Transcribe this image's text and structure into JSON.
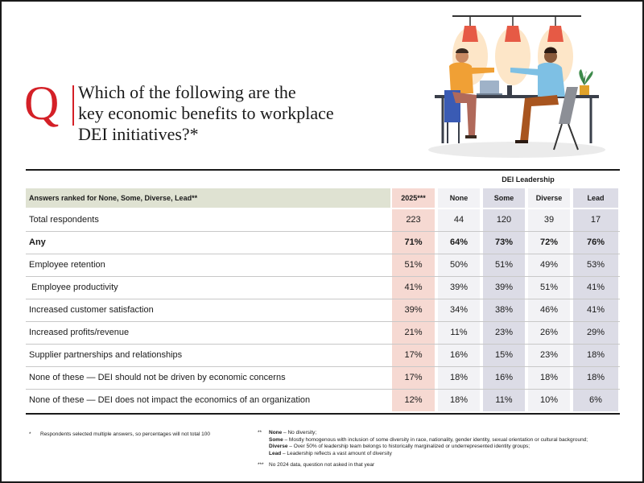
{
  "question": {
    "letter": "Q",
    "lines": [
      "Which of the following are the",
      "key economic benefits to workplace",
      "DEI initiatives?*"
    ]
  },
  "table": {
    "group_header": "DEI Leadership",
    "header_label": "Answers ranked for None, Some, Diverse, Lead**",
    "columns": [
      "2025***",
      "None",
      "Some",
      "Diverse",
      "Lead"
    ],
    "rows": [
      {
        "label": "Total respondents",
        "values": [
          "223",
          "44",
          "120",
          "39",
          "17"
        ],
        "bold": false
      },
      {
        "label": "Any",
        "values": [
          "71%",
          "64%",
          "73%",
          "72%",
          "76%"
        ],
        "bold": true
      },
      {
        "label": "Employee retention",
        "values": [
          "51%",
          "50%",
          "51%",
          "49%",
          "53%"
        ],
        "bold": false
      },
      {
        "label": " Employee productivity",
        "values": [
          "41%",
          "39%",
          "39%",
          "51%",
          "41%"
        ],
        "bold": false
      },
      {
        "label": "Increased customer satisfaction",
        "values": [
          "39%",
          "34%",
          "38%",
          "46%",
          "41%"
        ],
        "bold": false
      },
      {
        "label": "Increased profits/revenue",
        "values": [
          "21%",
          "11%",
          "23%",
          "26%",
          "29%"
        ],
        "bold": false
      },
      {
        "label": "Supplier partnerships and relationships",
        "values": [
          "17%",
          "16%",
          "15%",
          "23%",
          "18%"
        ],
        "bold": false
      },
      {
        "label": "None of these — DEI should not be driven by economic concerns",
        "values": [
          "17%",
          "18%",
          "16%",
          "18%",
          "18%"
        ],
        "bold": false
      },
      {
        "label": "None of these — DEI does not impact the economics of an organization",
        "values": [
          "12%",
          "18%",
          "11%",
          "10%",
          "6%"
        ],
        "bold": false
      }
    ]
  },
  "footnotes": {
    "single": {
      "mark": "*",
      "text": "Respondents selected multiple answers, so percentages will not total 100"
    },
    "double": {
      "mark": "**",
      "defs": [
        {
          "term": "None",
          "text": " – No diversity;"
        },
        {
          "term": "Some",
          "text": " – Mostly homogenous with inclusion of some diversity in race, nationality, gender identity, sexual orientation or cultural background;"
        },
        {
          "term": "Diverse",
          "text": " – Over 50% of leadership team belongs to historically marginalized or underrepresented identity groups;"
        },
        {
          "term": "Lead",
          "text": " – Leadership reflects a vast amount of diversity"
        }
      ]
    },
    "triple": {
      "mark": "***",
      "text": "No 2024 data, question not asked in that year"
    }
  },
  "colors": {
    "accent_red": "#d42027",
    "header_label_bg": "#dfe2d2",
    "col_2025_bg": "#f6d9d2",
    "col_light_bg": "#f2f2f5",
    "col_dark_bg": "#dcdce6"
  },
  "illustration": {
    "icon": "coworkers-fist-bump-illustration"
  }
}
